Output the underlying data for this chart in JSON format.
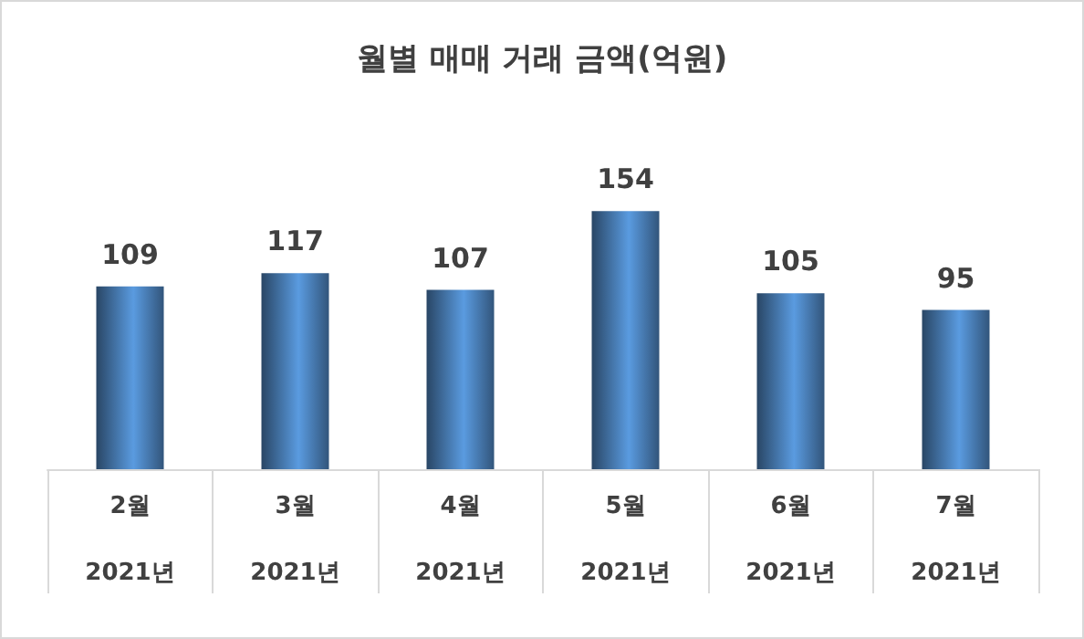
{
  "chart_data": {
    "type": "bar",
    "title": "월별 매매 거래 금액(억원)",
    "categories": [
      "2월",
      "3월",
      "4월",
      "5월",
      "6월",
      "7월"
    ],
    "values": [
      109,
      117,
      107,
      154,
      105,
      95
    ],
    "color": "#5a9be0",
    "data_labels": true,
    "annotations": [
      "2021년",
      "2021년",
      "2021년",
      "2021년",
      "2021년",
      "2021년"
    ]
  }
}
